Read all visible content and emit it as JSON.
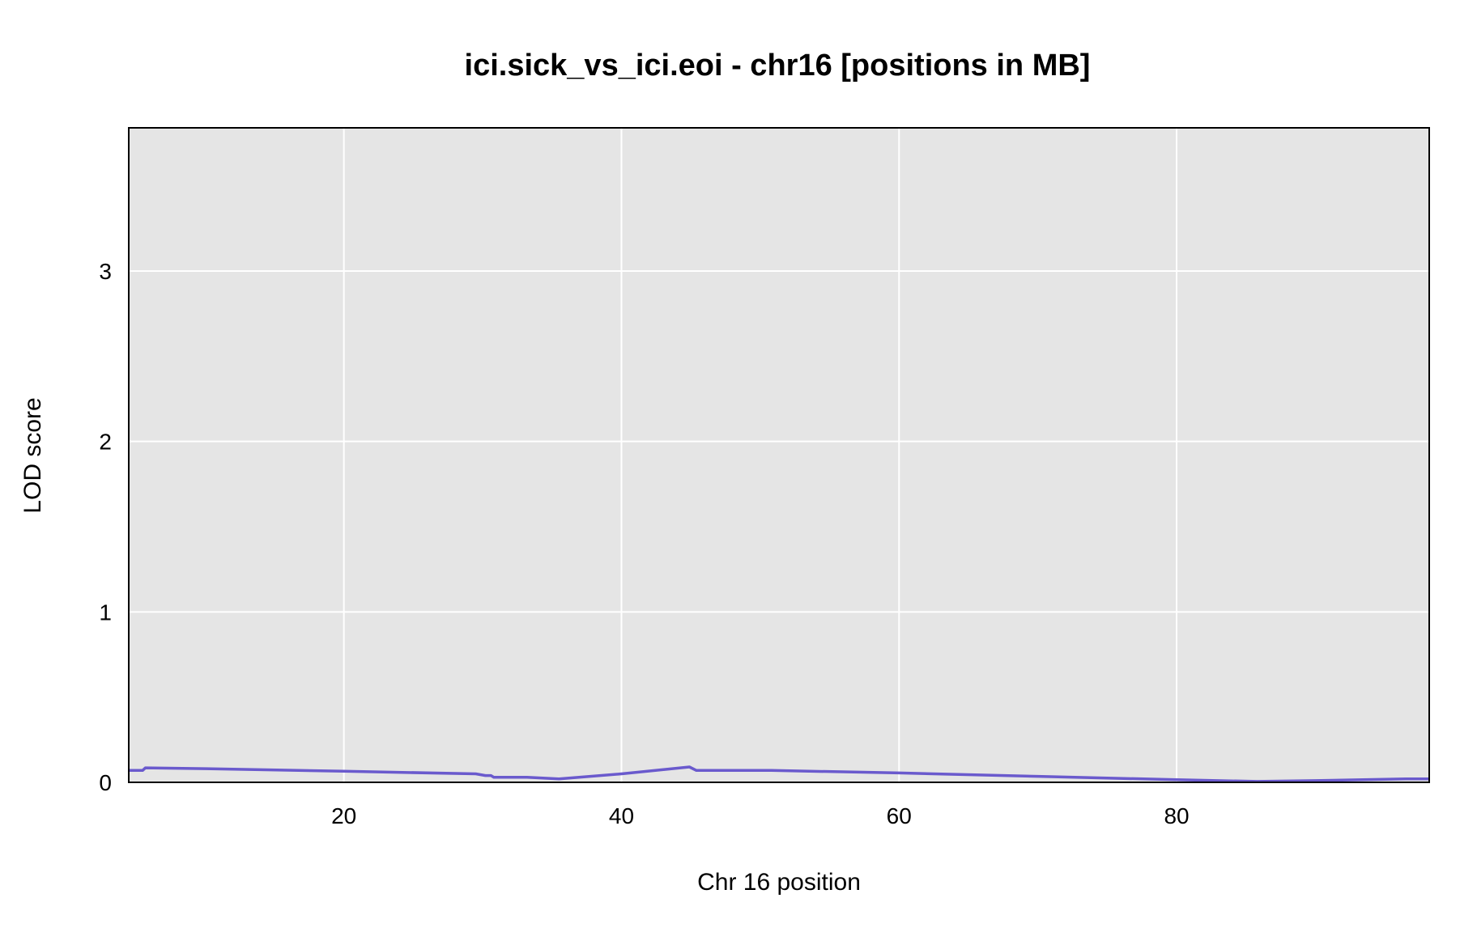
{
  "chart_data": {
    "type": "line",
    "title": "ici.sick_vs_ici.eoi - chr16 [positions in MB]",
    "xlabel": "Chr 16 position",
    "ylabel": "LOD score",
    "xlim": [
      4.5,
      98.2
    ],
    "ylim": [
      0,
      3.84
    ],
    "xticks": [
      20,
      40,
      60,
      80
    ],
    "xtick_labels": [
      "20",
      "40",
      "60",
      "80"
    ],
    "yticks": [
      0,
      1,
      2,
      3
    ],
    "ytick_labels": [
      "0",
      "1",
      "2",
      "3"
    ],
    "grid": true,
    "background": "#e5e5e5",
    "grid_color": "#ffffff",
    "series": [
      {
        "color": "#6a5acd",
        "x": [
          4.5,
          5.5,
          5.7,
          10.0,
          20.0,
          29.5,
          30.2,
          30.6,
          30.8,
          33.2,
          35.5,
          40.0,
          44.9,
          45.4,
          50.8,
          60.0,
          70.0,
          80.0,
          85.8,
          90.0,
          96.5,
          98.2
        ],
        "y": [
          0.07,
          0.07,
          0.085,
          0.08,
          0.065,
          0.05,
          0.04,
          0.04,
          0.03,
          0.03,
          0.02,
          0.05,
          0.09,
          0.07,
          0.07,
          0.055,
          0.035,
          0.015,
          0.005,
          0.01,
          0.02,
          0.02
        ]
      }
    ]
  }
}
